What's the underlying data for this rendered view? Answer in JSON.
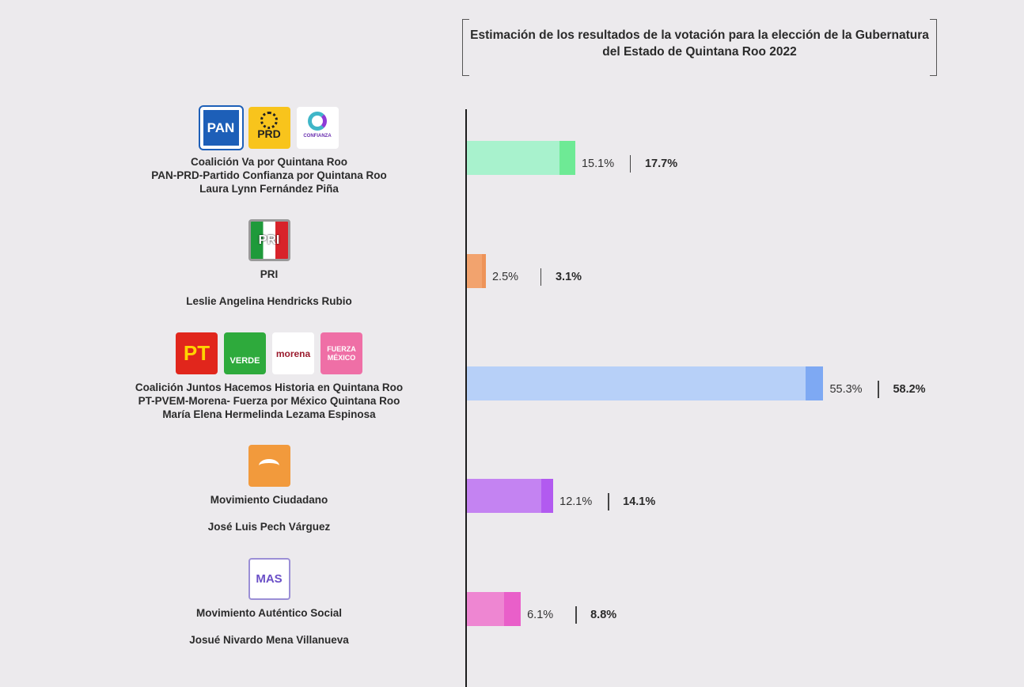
{
  "title": "Estimación de los resultados de la votación para la elección de la Gubernatura del Estado de Quintana Roo 2022",
  "parties": [
    {
      "logos": [
        {
          "icon": "pan-logo-icon",
          "text": "PAN",
          "bg": "#1d5fb8"
        },
        {
          "icon": "prd-logo-icon",
          "text": "PRD",
          "bg": "#f8c41c"
        },
        {
          "icon": "confianza-logo-icon",
          "text": "CONFIANZA",
          "bg": "#ffffff"
        }
      ],
      "lines": [
        "Coalición Va por Quintana Roo",
        "PAN-PRD-Partido Confianza por Quintana Roo",
        "Laura Lynn Fernández Piña"
      ]
    },
    {
      "logos": [
        {
          "icon": "pri-logo-icon",
          "text": "PRI",
          "bg": "#ffffff"
        }
      ],
      "lines": [
        "PRI",
        "",
        "Leslie Angelina Hendricks Rubio"
      ]
    },
    {
      "logos": [
        {
          "icon": "pt-logo-icon",
          "text": "PT",
          "bg": "#e1261c"
        },
        {
          "icon": "verde-logo-icon",
          "text": "VERDE",
          "bg": "#2eaa3c"
        },
        {
          "icon": "morena-logo-icon",
          "text": "morena",
          "bg": "#ffffff"
        },
        {
          "icon": "fuerza-mexico-logo-icon",
          "text": "FUERZA MÉXICO",
          "bg": "#ef6fa6"
        }
      ],
      "lines": [
        "Coalición Juntos Hacemos Historia en Quintana Roo",
        "PT-PVEM-Morena- Fuerza por México Quintana Roo",
        "María Elena Hermelinda Lezama Espinosa"
      ]
    },
    {
      "logos": [
        {
          "icon": "movimiento-ciudadano-logo-icon",
          "text": "",
          "bg": "#f29a3c"
        }
      ],
      "lines": [
        "Movimiento Ciudadano",
        "",
        "José Luis Pech Várguez"
      ]
    },
    {
      "logos": [
        {
          "icon": "mas-logo-icon",
          "text": "MAS",
          "bg": "#ffffff"
        }
      ],
      "lines": [
        "Movimiento Auténtico Social",
        "",
        "Josué Nivardo Mena Villanueva"
      ]
    }
  ],
  "chart_data": {
    "type": "bar",
    "orientation": "horizontal",
    "title": "Estimación de los resultados de la votación para la elección de la Gubernatura del Estado de Quintana Roo 2022",
    "categories": [
      "Coalición Va por Quintana Roo",
      "PRI",
      "Coalición Juntos Hacemos Historia en Quintana Roo",
      "Movimiento Ciudadano",
      "Movimiento Auténtico Social"
    ],
    "series": [
      {
        "name": "",
        "values": [
          15.1,
          2.5,
          55.3,
          12.1,
          6.1
        ]
      },
      {
        "name": "",
        "values": [
          17.7,
          3.1,
          58.2,
          14.1,
          8.8
        ]
      }
    ],
    "labels_low": [
      "15.1%",
      "2.5%",
      "55.3%",
      "12.1%",
      "6.1%"
    ],
    "labels_high": [
      "17.7%",
      "3.1%",
      "58.2%",
      "14.1%",
      "8.8%"
    ],
    "colors_light": [
      "#a8f2cd",
      "#f2a36e",
      "#b7d0f8",
      "#c483f2",
      "#ee86d2"
    ],
    "colors_dark": [
      "#6eea95",
      "#ee9358",
      "#7ea9f3",
      "#b25af0",
      "#e95fc9"
    ],
    "xlim": [
      0,
      100
    ]
  }
}
